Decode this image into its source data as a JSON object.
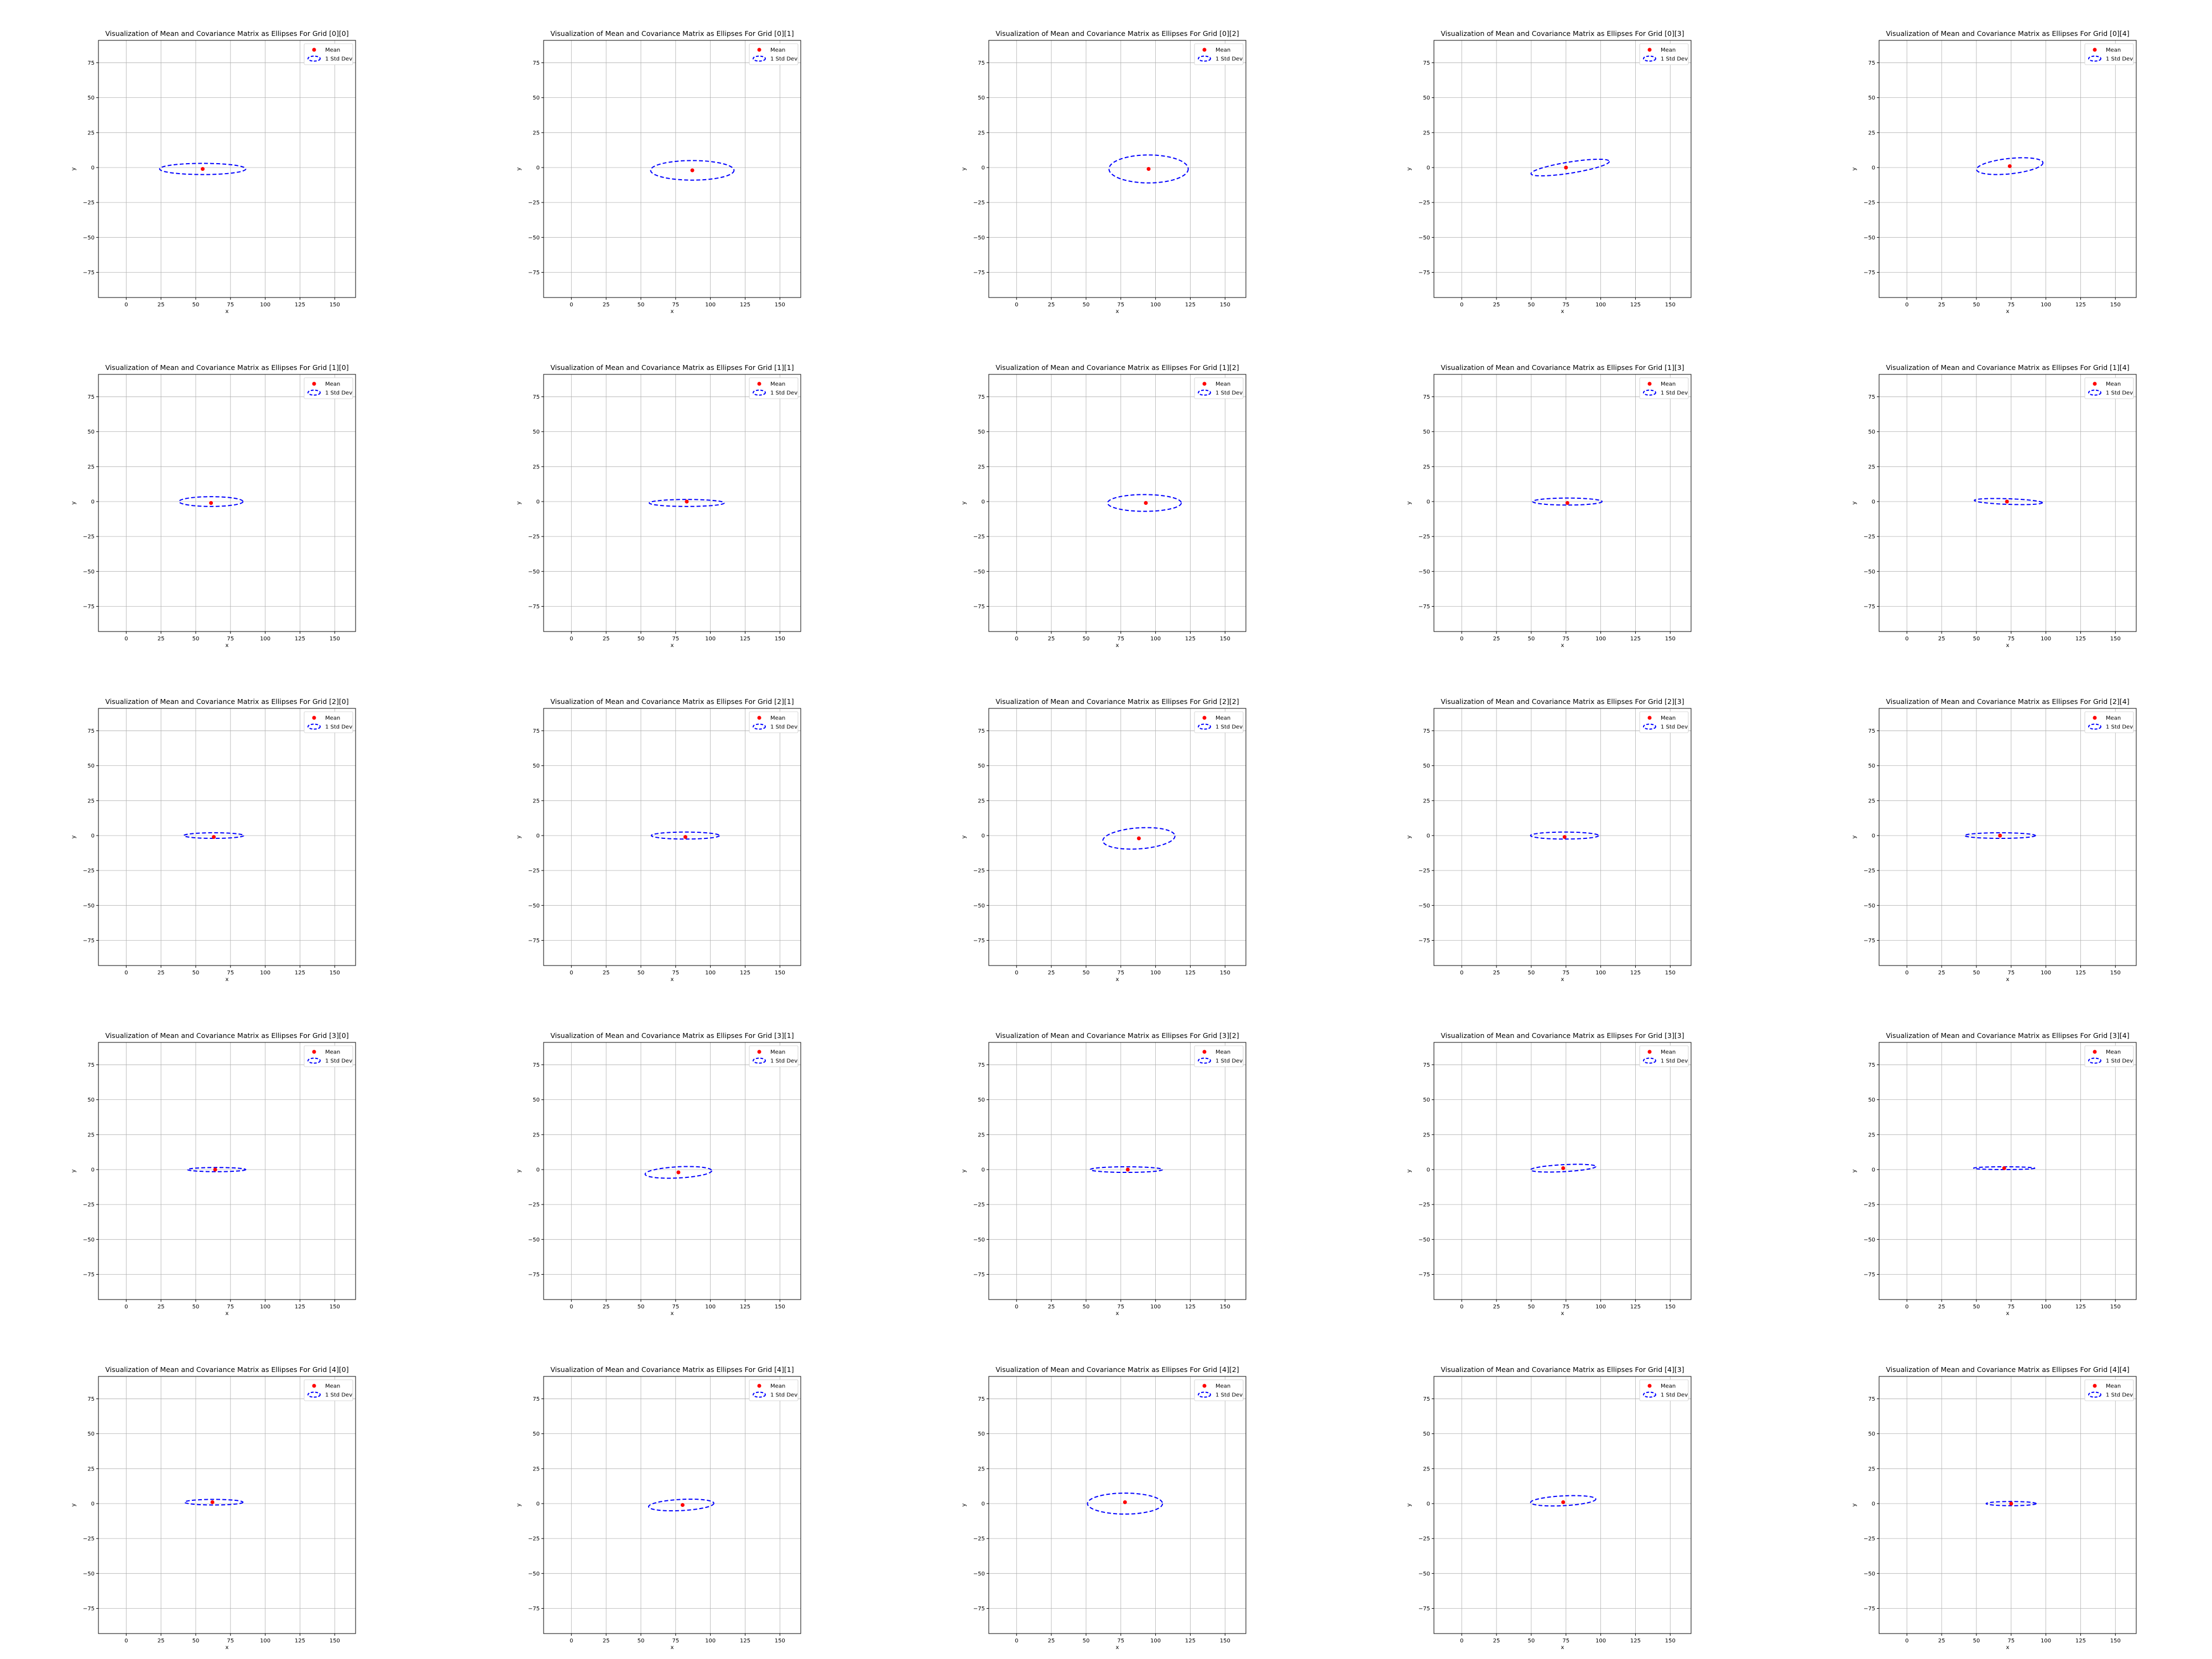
{
  "figure": {
    "legend_placement": "upper right",
    "legend_labels": {
      "mean": "Mean",
      "std": "1 Std Dev"
    },
    "colors": {
      "mean_marker": "#ff0000",
      "ellipse": "#0000ff",
      "grid": "#b0b0b0",
      "axes": "#000000"
    },
    "ellipse_linestyle": "dashed",
    "grid": true
  },
  "chart_data": [
    {
      "type": "scatter",
      "title": "Visualization of Mean and Covariance Matrix as Ellipses For Grid [0][0]",
      "xlabel": "x",
      "ylabel": "y",
      "xlim": [
        -20,
        165
      ],
      "ylim": [
        -93,
        91
      ],
      "xticks": [
        0,
        25,
        50,
        75,
        100,
        125,
        150
      ],
      "yticks": [
        -75,
        -50,
        -25,
        0,
        25,
        50,
        75
      ],
      "mean": [
        55,
        -1
      ],
      "ellipse": {
        "center": [
          55,
          -1
        ],
        "width": 62,
        "height": 8,
        "angle": 0
      }
    },
    {
      "type": "scatter",
      "title": "Visualization of Mean and Covariance Matrix as Ellipses For Grid [0][1]",
      "xlabel": "x",
      "ylabel": "y",
      "xlim": [
        -20,
        165
      ],
      "ylim": [
        -93,
        91
      ],
      "xticks": [
        0,
        25,
        50,
        75,
        100,
        125,
        150
      ],
      "yticks": [
        -75,
        -50,
        -25,
        0,
        25,
        50,
        75
      ],
      "mean": [
        87,
        -2
      ],
      "ellipse": {
        "center": [
          87,
          -2
        ],
        "width": 60,
        "height": 14,
        "angle": 0
      }
    },
    {
      "type": "scatter",
      "title": "Visualization of Mean and Covariance Matrix as Ellipses For Grid [0][2]",
      "xlabel": "x",
      "ylabel": "y",
      "xlim": [
        -20,
        165
      ],
      "ylim": [
        -93,
        91
      ],
      "xticks": [
        0,
        25,
        50,
        75,
        100,
        125,
        150
      ],
      "yticks": [
        -75,
        -50,
        -25,
        0,
        25,
        50,
        75
      ],
      "mean": [
        95,
        -1
      ],
      "ellipse": {
        "center": [
          95,
          -1
        ],
        "width": 57,
        "height": 20,
        "angle": 0
      }
    },
    {
      "type": "scatter",
      "title": "Visualization of Mean and Covariance Matrix as Ellipses For Grid [0][3]",
      "xlabel": "x",
      "ylabel": "y",
      "xlim": [
        -20,
        165
      ],
      "ylim": [
        -93,
        91
      ],
      "xticks": [
        0,
        25,
        50,
        75,
        100,
        125,
        150
      ],
      "yticks": [
        -75,
        -50,
        -25,
        0,
        25,
        50,
        75
      ],
      "mean": [
        75,
        0
      ],
      "ellipse": {
        "center": [
          78,
          0
        ],
        "width": 57,
        "height": 8,
        "angle": 9
      }
    },
    {
      "type": "scatter",
      "title": "Visualization of Mean and Covariance Matrix as Ellipses For Grid [0][4]",
      "xlabel": "x",
      "ylabel": "y",
      "xlim": [
        -20,
        165
      ],
      "ylim": [
        -93,
        91
      ],
      "xticks": [
        0,
        25,
        50,
        75,
        100,
        125,
        150
      ],
      "yticks": [
        -75,
        -50,
        -25,
        0,
        25,
        50,
        75
      ],
      "mean": [
        74,
        1
      ],
      "ellipse": {
        "center": [
          74,
          1
        ],
        "width": 48,
        "height": 11,
        "angle": 6
      }
    },
    {
      "type": "scatter",
      "title": "Visualization of Mean and Covariance Matrix as Ellipses For Grid [1][0]",
      "xlabel": "x",
      "ylabel": "y",
      "xlim": [
        -20,
        165
      ],
      "ylim": [
        -93,
        91
      ],
      "xticks": [
        0,
        25,
        50,
        75,
        100,
        125,
        150
      ],
      "yticks": [
        -75,
        -50,
        -25,
        0,
        25,
        50,
        75
      ],
      "mean": [
        61,
        -1
      ],
      "ellipse": {
        "center": [
          61,
          0
        ],
        "width": 46,
        "height": 7,
        "angle": 0
      }
    },
    {
      "type": "scatter",
      "title": "Visualization of Mean and Covariance Matrix as Ellipses For Grid [1][1]",
      "xlabel": "x",
      "ylabel": "y",
      "xlim": [
        -20,
        165
      ],
      "ylim": [
        -93,
        91
      ],
      "xticks": [
        0,
        25,
        50,
        75,
        100,
        125,
        150
      ],
      "yticks": [
        -75,
        -50,
        -25,
        0,
        25,
        50,
        75
      ],
      "mean": [
        83,
        0
      ],
      "ellipse": {
        "center": [
          83,
          -1
        ],
        "width": 54,
        "height": 5,
        "angle": 0
      }
    },
    {
      "type": "scatter",
      "title": "Visualization of Mean and Covariance Matrix as Ellipses For Grid [1][2]",
      "xlabel": "x",
      "ylabel": "y",
      "xlim": [
        -20,
        165
      ],
      "ylim": [
        -93,
        91
      ],
      "xticks": [
        0,
        25,
        50,
        75,
        100,
        125,
        150
      ],
      "yticks": [
        -75,
        -50,
        -25,
        0,
        25,
        50,
        75
      ],
      "mean": [
        93,
        -1
      ],
      "ellipse": {
        "center": [
          92,
          -1
        ],
        "width": 53,
        "height": 12,
        "angle": 0
      }
    },
    {
      "type": "scatter",
      "title": "Visualization of Mean and Covariance Matrix as Ellipses For Grid [1][3]",
      "xlabel": "x",
      "ylabel": "y",
      "xlim": [
        -20,
        165
      ],
      "ylim": [
        -93,
        91
      ],
      "xticks": [
        0,
        25,
        50,
        75,
        100,
        125,
        150
      ],
      "yticks": [
        -75,
        -50,
        -25,
        0,
        25,
        50,
        75
      ],
      "mean": [
        76,
        -1
      ],
      "ellipse": {
        "center": [
          76,
          0
        ],
        "width": 50,
        "height": 5,
        "angle": 0
      }
    },
    {
      "type": "scatter",
      "title": "Visualization of Mean and Covariance Matrix as Ellipses For Grid [1][4]",
      "xlabel": "x",
      "ylabel": "y",
      "xlim": [
        -20,
        165
      ],
      "ylim": [
        -93,
        91
      ],
      "xticks": [
        0,
        25,
        50,
        75,
        100,
        125,
        150
      ],
      "yticks": [
        -75,
        -50,
        -25,
        0,
        25,
        50,
        75
      ],
      "mean": [
        72,
        0
      ],
      "ellipse": {
        "center": [
          73,
          0
        ],
        "width": 49,
        "height": 4,
        "angle": -2
      }
    },
    {
      "type": "scatter",
      "title": "Visualization of Mean and Covariance Matrix as Ellipses For Grid [2][0]",
      "xlabel": "x",
      "ylabel": "y",
      "xlim": [
        -20,
        165
      ],
      "ylim": [
        -93,
        91
      ],
      "xticks": [
        0,
        25,
        50,
        75,
        100,
        125,
        150
      ],
      "yticks": [
        -75,
        -50,
        -25,
        0,
        25,
        50,
        75
      ],
      "mean": [
        63,
        -1
      ],
      "ellipse": {
        "center": [
          63,
          0
        ],
        "width": 43,
        "height": 4,
        "angle": 0
      }
    },
    {
      "type": "scatter",
      "title": "Visualization of Mean and Covariance Matrix as Ellipses For Grid [2][1]",
      "xlabel": "x",
      "ylabel": "y",
      "xlim": [
        -20,
        165
      ],
      "ylim": [
        -93,
        91
      ],
      "xticks": [
        0,
        25,
        50,
        75,
        100,
        125,
        150
      ],
      "yticks": [
        -75,
        -50,
        -25,
        0,
        25,
        50,
        75
      ],
      "mean": [
        82,
        -1
      ],
      "ellipse": {
        "center": [
          82,
          0
        ],
        "width": 49,
        "height": 5,
        "angle": 0
      }
    },
    {
      "type": "scatter",
      "title": "Visualization of Mean and Covariance Matrix as Ellipses For Grid [2][2]",
      "xlabel": "x",
      "ylabel": "y",
      "xlim": [
        -20,
        165
      ],
      "ylim": [
        -93,
        91
      ],
      "xticks": [
        0,
        25,
        50,
        75,
        100,
        125,
        150
      ],
      "yticks": [
        -75,
        -50,
        -25,
        0,
        25,
        50,
        75
      ],
      "mean": [
        88,
        -2
      ],
      "ellipse": {
        "center": [
          88,
          -2
        ],
        "width": 52,
        "height": 15,
        "angle": 4
      }
    },
    {
      "type": "scatter",
      "title": "Visualization of Mean and Covariance Matrix as Ellipses For Grid [2][3]",
      "xlabel": "x",
      "ylabel": "y",
      "xlim": [
        -20,
        165
      ],
      "ylim": [
        -93,
        91
      ],
      "xticks": [
        0,
        25,
        50,
        75,
        100,
        125,
        150
      ],
      "yticks": [
        -75,
        -50,
        -25,
        0,
        25,
        50,
        75
      ],
      "mean": [
        74,
        -1
      ],
      "ellipse": {
        "center": [
          74,
          0
        ],
        "width": 49,
        "height": 5,
        "angle": 0
      }
    },
    {
      "type": "scatter",
      "title": "Visualization of Mean and Covariance Matrix as Ellipses For Grid [2][4]",
      "xlabel": "x",
      "ylabel": "y",
      "xlim": [
        -20,
        165
      ],
      "ylim": [
        -93,
        91
      ],
      "xticks": [
        0,
        25,
        50,
        75,
        100,
        125,
        150
      ],
      "yticks": [
        -75,
        -50,
        -25,
        0,
        25,
        50,
        75
      ],
      "mean": [
        67,
        0
      ],
      "ellipse": {
        "center": [
          67,
          0
        ],
        "width": 51,
        "height": 4,
        "angle": 0
      }
    },
    {
      "type": "scatter",
      "title": "Visualization of Mean and Covariance Matrix as Ellipses For Grid [3][0]",
      "xlabel": "x",
      "ylabel": "y",
      "xlim": [
        -20,
        165
      ],
      "ylim": [
        -93,
        91
      ],
      "xticks": [
        0,
        25,
        50,
        75,
        100,
        125,
        150
      ],
      "yticks": [
        -75,
        -50,
        -25,
        0,
        25,
        50,
        75
      ],
      "mean": [
        64,
        0
      ],
      "ellipse": {
        "center": [
          65,
          0
        ],
        "width": 42,
        "height": 3,
        "angle": 0
      }
    },
    {
      "type": "scatter",
      "title": "Visualization of Mean and Covariance Matrix as Ellipses For Grid [3][1]",
      "xlabel": "x",
      "ylabel": "y",
      "xlim": [
        -20,
        165
      ],
      "ylim": [
        -93,
        91
      ],
      "xticks": [
        0,
        25,
        50,
        75,
        100,
        125,
        150
      ],
      "yticks": [
        -75,
        -50,
        -25,
        0,
        25,
        50,
        75
      ],
      "mean": [
        77,
        -2
      ],
      "ellipse": {
        "center": [
          77,
          -2
        ],
        "width": 48,
        "height": 8,
        "angle": 3
      }
    },
    {
      "type": "scatter",
      "title": "Visualization of Mean and Covariance Matrix as Ellipses For Grid [3][2]",
      "xlabel": "x",
      "ylabel": "y",
      "xlim": [
        -20,
        165
      ],
      "ylim": [
        -93,
        91
      ],
      "xticks": [
        0,
        25,
        50,
        75,
        100,
        125,
        150
      ],
      "yticks": [
        -75,
        -50,
        -25,
        0,
        25,
        50,
        75
      ],
      "mean": [
        80,
        0
      ],
      "ellipse": {
        "center": [
          79,
          0
        ],
        "width": 52,
        "height": 4,
        "angle": 0
      }
    },
    {
      "type": "scatter",
      "title": "Visualization of Mean and Covariance Matrix as Ellipses For Grid [3][3]",
      "xlabel": "x",
      "ylabel": "y",
      "xlim": [
        -20,
        165
      ],
      "ylim": [
        -93,
        91
      ],
      "xticks": [
        0,
        25,
        50,
        75,
        100,
        125,
        150
      ],
      "yticks": [
        -75,
        -50,
        -25,
        0,
        25,
        50,
        75
      ],
      "mean": [
        73,
        1
      ],
      "ellipse": {
        "center": [
          73,
          1
        ],
        "width": 47,
        "height": 5,
        "angle": 3
      }
    },
    {
      "type": "scatter",
      "title": "Visualization of Mean and Covariance Matrix as Ellipses For Grid [3][4]",
      "xlabel": "x",
      "ylabel": "y",
      "xlim": [
        -20,
        165
      ],
      "ylim": [
        -93,
        91
      ],
      "xticks": [
        0,
        25,
        50,
        75,
        100,
        125,
        150
      ],
      "yticks": [
        -75,
        -50,
        -25,
        0,
        25,
        50,
        75
      ],
      "mean": [
        70,
        1
      ],
      "ellipse": {
        "center": [
          70,
          1
        ],
        "width": 44,
        "height": 2,
        "angle": 0
      }
    },
    {
      "type": "scatter",
      "title": "Visualization of Mean and Covariance Matrix as Ellipses For Grid [4][0]",
      "xlabel": "x",
      "ylabel": "y",
      "xlim": [
        -20,
        165
      ],
      "ylim": [
        -93,
        91
      ],
      "xticks": [
        0,
        25,
        50,
        75,
        100,
        125,
        150
      ],
      "yticks": [
        -75,
        -50,
        -25,
        0,
        25,
        50,
        75
      ],
      "mean": [
        62,
        1
      ],
      "ellipse": {
        "center": [
          63,
          1
        ],
        "width": 42,
        "height": 4,
        "angle": 0
      }
    },
    {
      "type": "scatter",
      "title": "Visualization of Mean and Covariance Matrix as Ellipses For Grid [4][1]",
      "xlabel": "x",
      "ylabel": "y",
      "xlim": [
        -20,
        165
      ],
      "ylim": [
        -93,
        91
      ],
      "xticks": [
        0,
        25,
        50,
        75,
        100,
        125,
        150
      ],
      "yticks": [
        -75,
        -50,
        -25,
        0,
        25,
        50,
        75
      ],
      "mean": [
        80,
        -1
      ],
      "ellipse": {
        "center": [
          79,
          -1
        ],
        "width": 47,
        "height": 8,
        "angle": 3
      }
    },
    {
      "type": "scatter",
      "title": "Visualization of Mean and Covariance Matrix as Ellipses For Grid [4][2]",
      "xlabel": "x",
      "ylabel": "y",
      "xlim": [
        -20,
        165
      ],
      "ylim": [
        -93,
        91
      ],
      "xticks": [
        0,
        25,
        50,
        75,
        100,
        125,
        150
      ],
      "yticks": [
        -75,
        -50,
        -25,
        0,
        25,
        50,
        75
      ],
      "mean": [
        78,
        1
      ],
      "ellipse": {
        "center": [
          78,
          0
        ],
        "width": 54,
        "height": 15,
        "angle": 0
      }
    },
    {
      "type": "scatter",
      "title": "Visualization of Mean and Covariance Matrix as Ellipses For Grid [4][3]",
      "xlabel": "x",
      "ylabel": "y",
      "xlim": [
        -20,
        165
      ],
      "ylim": [
        -93,
        91
      ],
      "xticks": [
        0,
        25,
        50,
        75,
        100,
        125,
        150
      ],
      "yticks": [
        -75,
        -50,
        -25,
        0,
        25,
        50,
        75
      ],
      "mean": [
        73,
        1
      ],
      "ellipse": {
        "center": [
          73,
          2
        ],
        "width": 47,
        "height": 7,
        "angle": 3
      }
    },
    {
      "type": "scatter",
      "title": "Visualization of Mean and Covariance Matrix as Ellipses For Grid [4][4]",
      "xlabel": "x",
      "ylabel": "y",
      "xlim": [
        -20,
        165
      ],
      "ylim": [
        -93,
        91
      ],
      "xticks": [
        0,
        25,
        50,
        75,
        100,
        125,
        150
      ],
      "yticks": [
        -75,
        -50,
        -25,
        0,
        25,
        50,
        75
      ],
      "mean": [
        75,
        0
      ],
      "ellipse": {
        "center": [
          75,
          0
        ],
        "width": 36,
        "height": 3,
        "angle": 0
      }
    }
  ]
}
